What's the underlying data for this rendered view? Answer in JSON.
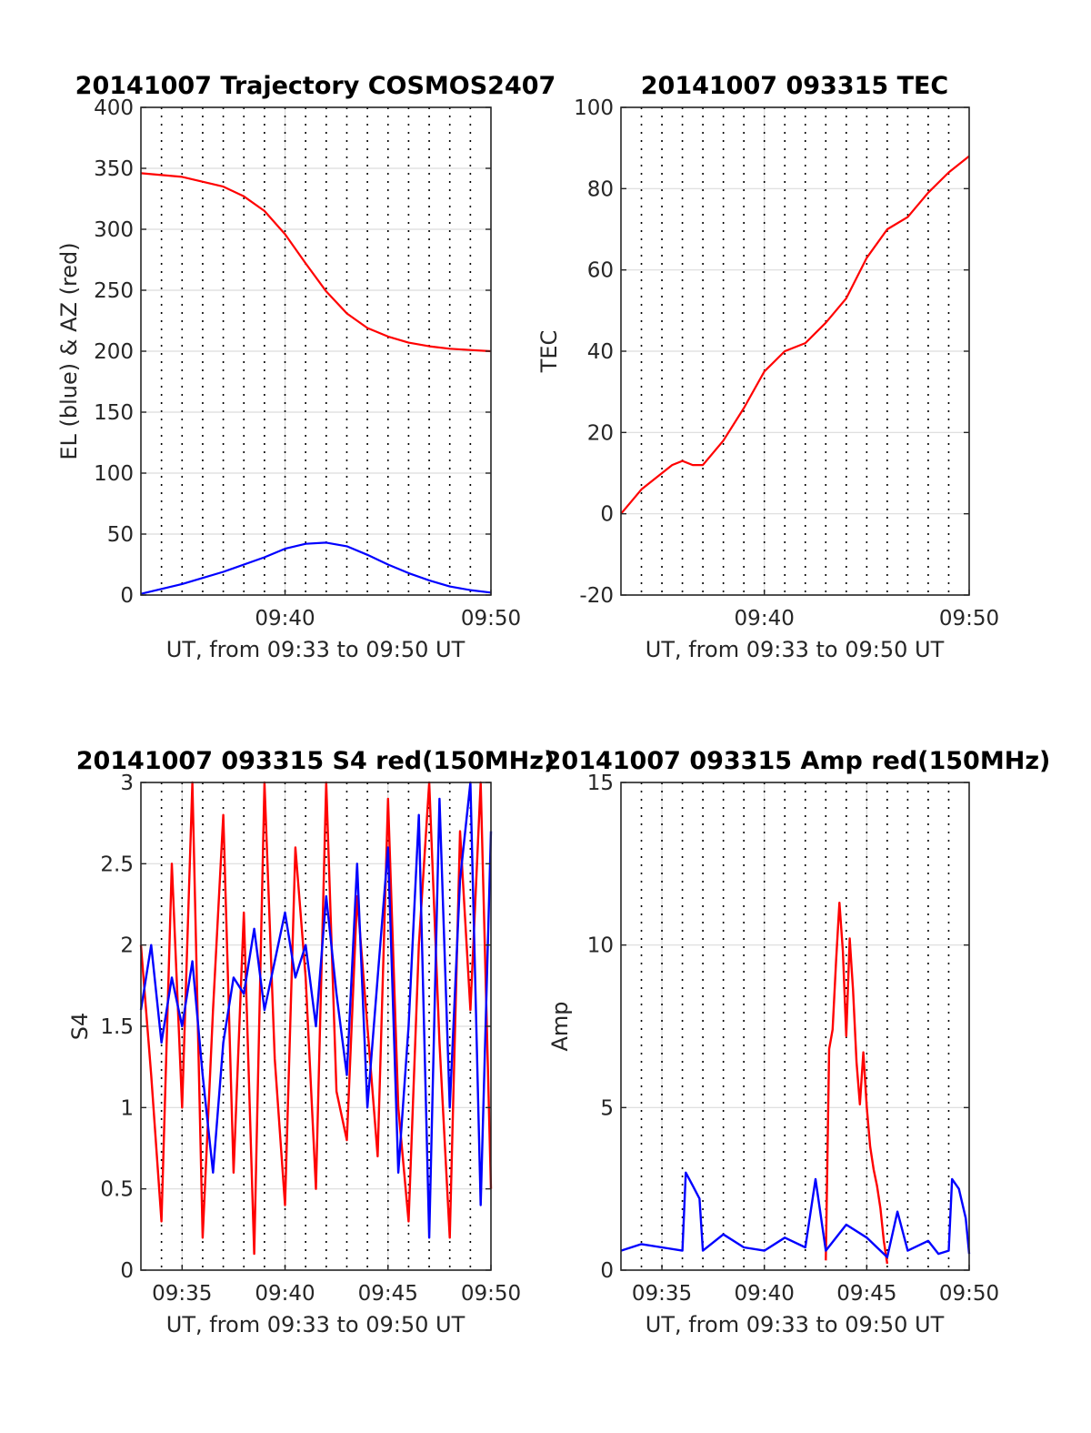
{
  "chart_data": [
    {
      "type": "line",
      "title": "20141007 Trajectory COSMOS2407",
      "xlabel": "UT, from 09:33 to 09:50 UT",
      "ylabel": "EL (blue) & AZ (red)",
      "xlim": [
        "09:33",
        "09:50"
      ],
      "ylim": [
        0,
        400
      ],
      "x_ticks": [
        "09:40",
        "09:50"
      ],
      "y_ticks": [
        "0",
        "50",
        "100",
        "150",
        "200",
        "250",
        "300",
        "350",
        "400"
      ],
      "grid": true,
      "dotted_vlines": [
        "09:34",
        "09:35",
        "09:36",
        "09:37",
        "09:38",
        "09:39",
        "09:40",
        "09:41",
        "09:42",
        "09:43",
        "09:44",
        "09:45",
        "09:46",
        "09:47",
        "09:48",
        "09:49"
      ],
      "series": [
        {
          "color": "#ff0000",
          "x": [
            "09:33",
            "09:35",
            "09:37",
            "09:38",
            "09:39",
            "09:40",
            "09:41",
            "09:42",
            "09:43",
            "09:44",
            "09:45",
            "09:46",
            "09:47",
            "09:48",
            "09:49",
            "09:50"
          ],
          "values": [
            346,
            343,
            335,
            327,
            315,
            296,
            272,
            249,
            231,
            219,
            212,
            207,
            204,
            202,
            201,
            200
          ]
        },
        {
          "color": "#0000ff",
          "x": [
            "09:33",
            "09:35",
            "09:37",
            "09:39",
            "09:40",
            "09:41",
            "09:42",
            "09:43",
            "09:44",
            "09:45",
            "09:46",
            "09:47",
            "09:48",
            "09:49",
            "09:50"
          ],
          "values": [
            1,
            9,
            19,
            31,
            38,
            42,
            43,
            40,
            33,
            25,
            18,
            12,
            7,
            4,
            2
          ]
        }
      ]
    },
    {
      "type": "line",
      "title": "20141007 093315 TEC",
      "xlabel": "UT, from 09:33 to 09:50 UT",
      "ylabel": "TEC",
      "xlim": [
        "09:33",
        "09:50"
      ],
      "ylim": [
        -20,
        100
      ],
      "x_ticks": [
        "09:40",
        "09:50"
      ],
      "y_ticks": [
        "-20",
        "0",
        "20",
        "40",
        "60",
        "80",
        "100"
      ],
      "grid": true,
      "dotted_vlines": [
        "09:34",
        "09:35",
        "09:36",
        "09:37",
        "09:38",
        "09:39",
        "09:40",
        "09:41",
        "09:42",
        "09:43",
        "09:44",
        "09:45",
        "09:46",
        "09:47",
        "09:48",
        "09:49"
      ],
      "series": [
        {
          "color": "#ff0000",
          "x": [
            "09:33",
            "09:33:30",
            "09:34",
            "09:35",
            "09:35:30",
            "09:36",
            "09:36:30",
            "09:37",
            "09:38",
            "09:39",
            "09:40",
            "09:41",
            "09:42",
            "09:43",
            "09:44",
            "09:45",
            "09:46",
            "09:47",
            "09:48",
            "09:49",
            "09:50"
          ],
          "values": [
            0,
            3,
            6,
            10,
            12,
            13,
            12,
            12,
            18,
            26,
            35,
            40,
            42,
            47,
            53,
            63,
            70,
            73,
            79,
            84,
            88
          ]
        }
      ]
    },
    {
      "type": "line",
      "title": "20141007 093315 S4 red(150MHz)",
      "xlabel": "UT, from 09:33 to 09:50 UT",
      "ylabel": "S4",
      "xlim": [
        "09:33",
        "09:50"
      ],
      "ylim": [
        0,
        3
      ],
      "x_ticks": [
        "09:35",
        "09:40",
        "09:45",
        "09:50"
      ],
      "y_ticks": [
        "0",
        "0.5",
        "1",
        "1.5",
        "2",
        "2.5",
        "3"
      ],
      "grid": true,
      "dotted_vlines": [
        "09:34",
        "09:35",
        "09:36",
        "09:37",
        "09:38",
        "09:39",
        "09:40",
        "09:41",
        "09:42",
        "09:43",
        "09:44",
        "09:45",
        "09:46",
        "09:47",
        "09:48",
        "09:49"
      ],
      "series": [
        {
          "color": "#ff0000",
          "x": [
            "09:33",
            "09:33:30",
            "09:34",
            "09:34:30",
            "09:35",
            "09:35:30",
            "09:36",
            "09:36:30",
            "09:37",
            "09:37:30",
            "09:38",
            "09:38:30",
            "09:39",
            "09:39:30",
            "09:40",
            "09:40:30",
            "09:41",
            "09:41:30",
            "09:42",
            "09:42:30",
            "09:43",
            "09:43:30",
            "09:44",
            "09:44:30",
            "09:45",
            "09:45:30",
            "09:46",
            "09:46:30",
            "09:47",
            "09:47:30",
            "09:48",
            "09:48:30",
            "09:49",
            "09:49:30",
            "09:50"
          ],
          "values": [
            2.0,
            1.2,
            0.3,
            2.5,
            1.0,
            3.0,
            0.2,
            1.6,
            2.8,
            0.6,
            2.2,
            0.1,
            3.0,
            1.3,
            0.4,
            2.6,
            1.8,
            0.5,
            3.0,
            1.1,
            0.8,
            2.3,
            1.5,
            0.7,
            2.9,
            1.0,
            0.3,
            2.0,
            3.0,
            1.4,
            0.2,
            2.7,
            1.6,
            3.0,
            0.5
          ]
        },
        {
          "color": "#0000ff",
          "x": [
            "09:33",
            "09:33:30",
            "09:34",
            "09:34:30",
            "09:35",
            "09:35:30",
            "09:36",
            "09:36:30",
            "09:37",
            "09:37:30",
            "09:38",
            "09:38:30",
            "09:39",
            "09:39:30",
            "09:40",
            "09:40:30",
            "09:41",
            "09:41:30",
            "09:42",
            "09:42:30",
            "09:43",
            "09:43:30",
            "09:44",
            "09:44:30",
            "09:45",
            "09:45:30",
            "09:46",
            "09:46:30",
            "09:47",
            "09:47:30",
            "09:48",
            "09:48:30",
            "09:49",
            "09:49:30",
            "09:50"
          ],
          "values": [
            1.6,
            2.0,
            1.4,
            1.8,
            1.5,
            1.9,
            1.2,
            0.6,
            1.4,
            1.8,
            1.7,
            2.1,
            1.6,
            1.9,
            2.2,
            1.8,
            2.0,
            1.5,
            2.3,
            1.7,
            1.2,
            2.5,
            1.0,
            1.8,
            2.6,
            0.6,
            1.5,
            2.8,
            0.2,
            2.9,
            1.0,
            2.4,
            3.0,
            0.4,
            2.7
          ]
        }
      ]
    },
    {
      "type": "line",
      "title": "20141007 093315 Amp red(150MHz)",
      "xlabel": "UT, from 09:33 to 09:50 UT",
      "ylabel": "Amp",
      "xlim": [
        "09:33",
        "09:50"
      ],
      "ylim": [
        0,
        15
      ],
      "x_ticks": [
        "09:35",
        "09:40",
        "09:45",
        "09:50"
      ],
      "y_ticks": [
        "0",
        "5",
        "10",
        "15"
      ],
      "grid": true,
      "dotted_vlines": [
        "09:34",
        "09:35",
        "09:36",
        "09:37",
        "09:38",
        "09:39",
        "09:40",
        "09:41",
        "09:42",
        "09:43",
        "09:44",
        "09:45",
        "09:46",
        "09:47",
        "09:48",
        "09:49"
      ],
      "series": [
        {
          "color": "#ff0000",
          "x": [
            "09:43",
            "09:43:10",
            "09:43:20",
            "09:43:30",
            "09:43:40",
            "09:43:50",
            "09:44",
            "09:44:10",
            "09:44:20",
            "09:44:30",
            "09:44:40",
            "09:44:50",
            "09:45",
            "09:45:10",
            "09:45:20",
            "09:45:30",
            "09:45:40",
            "09:45:50",
            "09:46"
          ],
          "values": [
            0.3,
            6.8,
            7.4,
            9.5,
            11.3,
            9.8,
            7.2,
            10.2,
            8.6,
            6.4,
            5.1,
            6.7,
            5.0,
            3.8,
            3.1,
            2.6,
            1.9,
            0.9,
            0.2
          ]
        },
        {
          "color": "#0000ff",
          "x": [
            "09:33",
            "09:34",
            "09:35",
            "09:36",
            "09:36:10",
            "09:36:30",
            "09:36:50",
            "09:37",
            "09:38",
            "09:39",
            "09:40",
            "09:41",
            "09:42",
            "09:42:30",
            "09:43",
            "09:44",
            "09:45",
            "09:45:30",
            "09:46",
            "09:46:30",
            "09:47",
            "09:48",
            "09:48:30",
            "09:49",
            "09:49:10",
            "09:49:30",
            "09:49:50",
            "09:50"
          ],
          "values": [
            0.6,
            0.8,
            0.7,
            0.6,
            3.0,
            2.6,
            2.2,
            0.6,
            1.1,
            0.7,
            0.6,
            1.0,
            0.7,
            2.8,
            0.6,
            1.4,
            1.0,
            0.7,
            0.4,
            1.8,
            0.6,
            0.9,
            0.5,
            0.6,
            2.8,
            2.5,
            1.6,
            0.5
          ]
        }
      ]
    }
  ]
}
